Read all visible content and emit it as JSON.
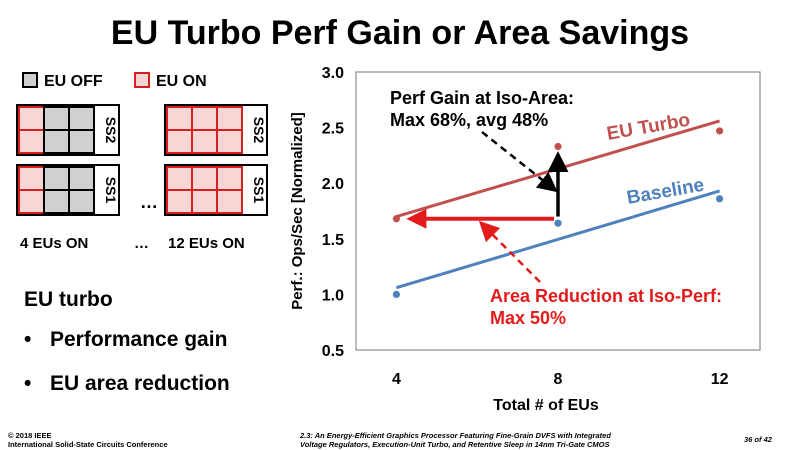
{
  "slide": {
    "title": "EU Turbo Perf Gain or Area Savings"
  },
  "legend": {
    "off_label": "EU OFF",
    "on_label": "EU ON",
    "off_color": "#d0d0d0",
    "on_color": "#f9d6d6",
    "on_border": "#d62020"
  },
  "diagram": {
    "ss_top": "SS2",
    "ss_bottom": "SS1",
    "ellipsis": "…",
    "left_caption": "4 EUs ON",
    "caption_sep": "…",
    "right_caption": "12 EUs ON"
  },
  "bullets": {
    "heading": "EU turbo",
    "items": [
      "Performance gain",
      "EU area reduction"
    ],
    "marker": "•"
  },
  "chart_data": {
    "type": "scatter",
    "xlabel": "Total # of EUs",
    "ylabel": "Perf.: Ops/Sec [Normalized]",
    "x_ticks": [
      4,
      8,
      12
    ],
    "xlim": [
      3,
      13
    ],
    "ylim": [
      0.5,
      3.0
    ],
    "y_ticks": [
      "0.5",
      "1.0",
      "1.5",
      "2.0",
      "2.5",
      "3.0"
    ],
    "grid": false,
    "series": [
      {
        "name": "Baseline",
        "color": "#4f81bd",
        "points": [
          {
            "x": 4,
            "y": 1.0
          },
          {
            "x": 8,
            "y": 1.64
          },
          {
            "x": 12,
            "y": 1.86
          }
        ],
        "trend": [
          {
            "x": 4,
            "y": 1.06
          },
          {
            "x": 12,
            "y": 1.93
          }
        ]
      },
      {
        "name": "EU Turbo",
        "color": "#c0504d",
        "points": [
          {
            "x": 4,
            "y": 1.68
          },
          {
            "x": 8,
            "y": 2.33
          },
          {
            "x": 12,
            "y": 2.47
          }
        ],
        "trend": [
          {
            "x": 4,
            "y": 1.7
          },
          {
            "x": 12,
            "y": 2.56
          }
        ]
      }
    ],
    "annotations": {
      "perf_gain": {
        "line1": "Perf Gain at Iso-Area:",
        "line2": "Max 68%, avg 48%",
        "arrow_from": {
          "x": 8,
          "y": 1.7
        },
        "arrow_to": {
          "x": 8,
          "y": 2.32
        }
      },
      "area_reduction": {
        "line1": "Area Reduction at Iso-Perf:",
        "line2": "Max 50%",
        "color": "#e31b1b",
        "arrow_from": {
          "x": 7.9,
          "y": 1.68
        },
        "arrow_to": {
          "x": 4.05,
          "y": 1.68
        }
      }
    }
  },
  "footer": {
    "copyright_line1": "© 2018 IEEE",
    "copyright_line2": "International Solid-State Circuits Conference",
    "paper_line1": "2.3: An Energy-Efficient Graphics Processor Featuring Fine-Grain DVFS with Integrated",
    "paper_line2": "Voltage Regulators, Execution-Unit Turbo, and Retentive Sleep in 14nm Tri-Gate CMOS",
    "page": "36 of 42"
  }
}
